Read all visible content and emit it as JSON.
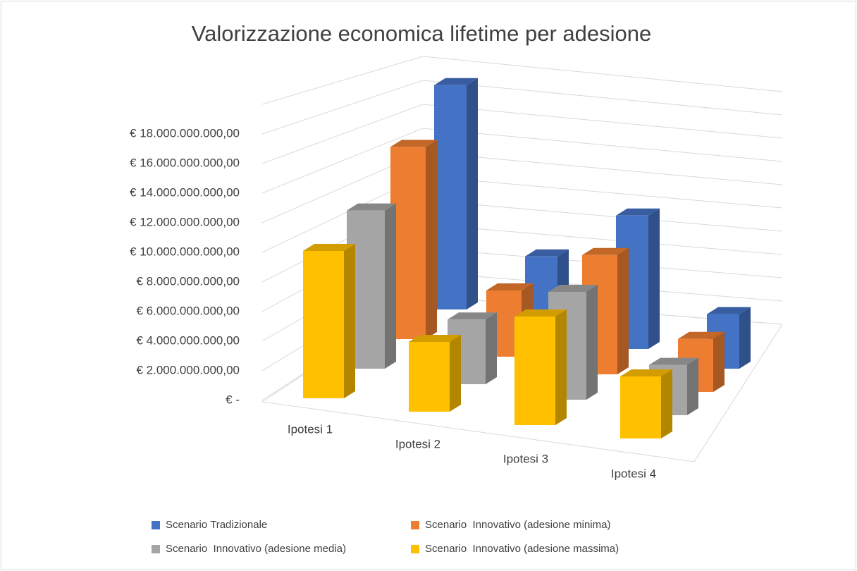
{
  "chart_data": {
    "type": "bar3d",
    "title": "Valorizzazione economica lifetime per adesione",
    "categories": [
      "Ipotesi 1",
      "Ipotesi 2",
      "Ipotesi 3",
      "Ipotesi 4"
    ],
    "series": [
      {
        "name": "Scenario Tradizionale",
        "color": "#4472c4",
        "values": [
          18500000000,
          6000000000,
          11000000000,
          4500000000
        ]
      },
      {
        "name": "Scenario  Innovativo (adesione minima)",
        "color": "#ed7d31",
        "values": [
          14500000000,
          5000000000,
          9000000000,
          4000000000
        ]
      },
      {
        "name": "Scenario  Innovativo (adesione media)",
        "color": "#a5a5a5",
        "values": [
          11000000000,
          4500000000,
          7500000000,
          3500000000
        ]
      },
      {
        "name": "Scenario  Innovativo (adesione massima)",
        "color": "#ffc000",
        "values": [
          9500000000,
          4500000000,
          7000000000,
          4000000000
        ]
      }
    ],
    "ylim": [
      0,
      20000000000
    ],
    "yticks": [
      {
        "value": 0,
        "label": "€ -"
      },
      {
        "value": 2000000000,
        "label": "€ 2.000.000.000,00"
      },
      {
        "value": 4000000000,
        "label": "€ 4.000.000.000,00"
      },
      {
        "value": 6000000000,
        "label": "€ 6.000.000.000,00"
      },
      {
        "value": 8000000000,
        "label": "€ 8.000.000.000,00"
      },
      {
        "value": 10000000000,
        "label": "€ 10.000.000.000,00"
      },
      {
        "value": 12000000000,
        "label": "€ 12.000.000.000,00"
      },
      {
        "value": 14000000000,
        "label": "€ 14.000.000.000,00"
      },
      {
        "value": 16000000000,
        "label": "€ 16.000.000.000,00"
      },
      {
        "value": 18000000000,
        "label": "€ 18.000.000.000,00"
      }
    ],
    "grid": true,
    "legend": "bottom"
  }
}
